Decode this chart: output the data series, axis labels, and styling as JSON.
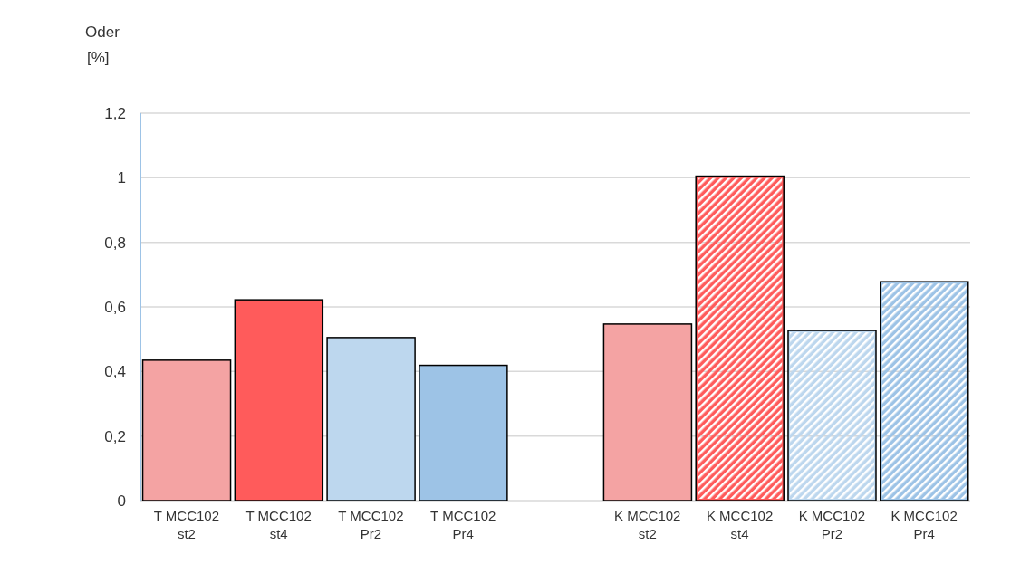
{
  "chart_data": {
    "type": "bar",
    "ylabel": "Oder [%]",
    "categories": [
      "T MCC102 st2",
      "T MCC102 st4",
      "T MCC102 Pr2",
      "T MCC102 Pr4",
      null,
      "K MCC102 st2",
      "K MCC102 st4",
      "K MCC102 Pr2",
      "K MCC102 Pr4"
    ],
    "values": [
      0.435,
      0.622,
      0.505,
      0.419,
      null,
      0.547,
      1.005,
      0.527,
      0.678
    ],
    "colors": [
      "#f4a3a3",
      "#ff5b5b",
      "#bdd7ee",
      "#9dc3e6",
      null,
      "#f4a3a3",
      "#ff5b5b",
      "#bdd7ee",
      "#9dc3e6"
    ],
    "ylim": [
      0,
      1.2
    ],
    "yticks": [
      0,
      {
        "value": 0.2,
        "label": "0,2"
      },
      {
        "value": 0.4,
        "label": "0,4"
      },
      {
        "value": 0.6,
        "label": "0,6"
      },
      {
        "value": 0.8,
        "label": "0,8"
      },
      1,
      {
        "value": 1.2,
        "label": "1,2"
      }
    ],
    "grid": "y"
  }
}
